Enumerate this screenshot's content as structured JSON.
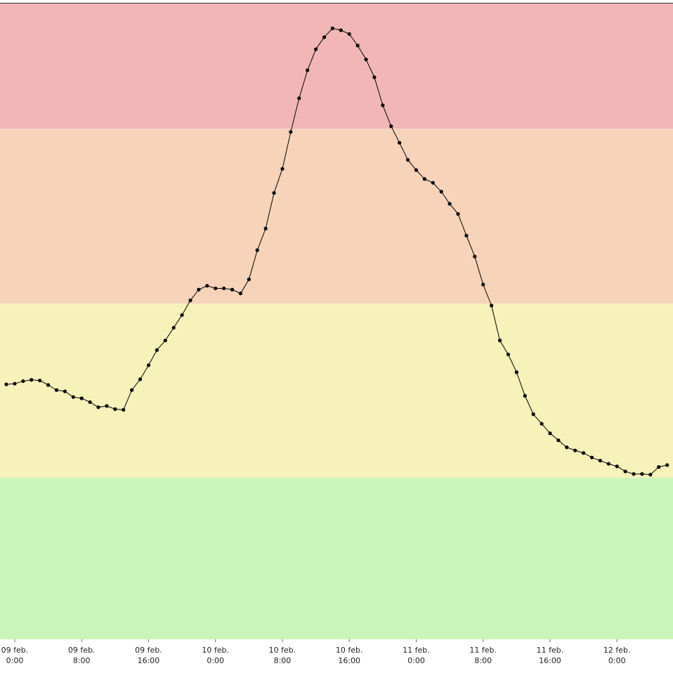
{
  "chart_data": {
    "type": "line",
    "xlim": [
      -1.76,
      78.7
    ],
    "ylim": [
      0,
      100
    ],
    "xticks": [
      {
        "value": 0,
        "label": "09 feb. 0:00"
      },
      {
        "value": 8,
        "label": "09 feb. 8:00"
      },
      {
        "value": 16,
        "label": "09 feb. 16:00"
      },
      {
        "value": 24,
        "label": "10 feb. 0:00"
      },
      {
        "value": 32,
        "label": "10 feb. 8:00"
      },
      {
        "value": 40,
        "label": "10 feb. 16:00"
      },
      {
        "value": 48,
        "label": "11 feb. 0:00"
      },
      {
        "value": 56,
        "label": "11 feb. 8:00"
      },
      {
        "value": 64,
        "label": "11 feb. 16:00"
      },
      {
        "value": 72,
        "label": "12 feb. 0:00"
      }
    ],
    "bands": [
      {
        "from": 0,
        "to": 25.4,
        "color": "#c9f5b9"
      },
      {
        "from": 25.4,
        "to": 52.8,
        "color": "#f6f2b9"
      },
      {
        "from": 52.8,
        "to": 80.3,
        "color": "#f6d3b9"
      },
      {
        "from": 80.3,
        "to": 100,
        "color": "#f2b6b7"
      }
    ],
    "x": [
      -1,
      0,
      1,
      2,
      3,
      4,
      5,
      6,
      7,
      8,
      9,
      10,
      11,
      12,
      13,
      14,
      15,
      16,
      17,
      18,
      19,
      20,
      21,
      22,
      23,
      24,
      25,
      26,
      27,
      28,
      29,
      30,
      31,
      32,
      33,
      34,
      35,
      36,
      37,
      38,
      39,
      40,
      41,
      42,
      43,
      44,
      45,
      46,
      47,
      48,
      49,
      50,
      51,
      52,
      53,
      54,
      55,
      56,
      57,
      58,
      59,
      60,
      61,
      62,
      63,
      64,
      65,
      66,
      67,
      68,
      69,
      70,
      71,
      72,
      73,
      74,
      75,
      76,
      77,
      78
    ],
    "series": [
      {
        "color": "#000000",
        "values": [
          40.1,
          40.2,
          40.6,
          40.8,
          40.7,
          40.0,
          39.2,
          39.0,
          38.1,
          37.9,
          37.3,
          36.5,
          36.7,
          36.2,
          36.1,
          39.2,
          40.9,
          43.1,
          45.5,
          47.0,
          49.0,
          51.0,
          53.3,
          55.0,
          55.6,
          55.2,
          55.2,
          55.0,
          54.4,
          56.6,
          61.2,
          64.6,
          70.2,
          74.0,
          79.8,
          85.1,
          89.5,
          92.8,
          94.7,
          96.1,
          95.8,
          95.2,
          93.4,
          91.2,
          88.4,
          84.0,
          80.7,
          78.1,
          75.4,
          73.8,
          72.4,
          71.8,
          70.4,
          68.5,
          66.9,
          63.5,
          60.2,
          55.8,
          52.5,
          47.0,
          44.8,
          42.0,
          38.3,
          35.4,
          33.9,
          32.4,
          31.3,
          30.2,
          29.7,
          29.3,
          28.6,
          28.1,
          27.6,
          27.2,
          26.4,
          26.0,
          26.0,
          25.9,
          27.1,
          27.4
        ]
      }
    ]
  }
}
